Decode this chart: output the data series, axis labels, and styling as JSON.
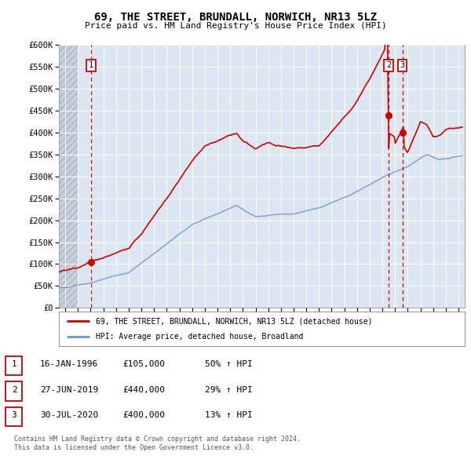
{
  "title": "69, THE STREET, BRUNDALL, NORWICH, NR13 5LZ",
  "subtitle": "Price paid vs. HM Land Registry's House Price Index (HPI)",
  "legend_line1": "69, THE STREET, BRUNDALL, NORWICH, NR13 5LZ (detached house)",
  "legend_line2": "HPI: Average price, detached house, Broadland",
  "footer1": "Contains HM Land Registry data © Crown copyright and database right 2024.",
  "footer2": "This data is licensed under the Open Government Licence v3.0.",
  "transactions": [
    {
      "label": "1",
      "date": "16-JAN-1996",
      "date_num": 1996.04,
      "price": 105000
    },
    {
      "label": "2",
      "date": "27-JUN-2019",
      "date_num": 2019.49,
      "price": 440000
    },
    {
      "label": "3",
      "date": "30-JUL-2020",
      "date_num": 2020.58,
      "price": 400000
    }
  ],
  "table_rows": [
    [
      "1",
      "16-JAN-1996",
      "£105,000",
      "50% ↑ HPI"
    ],
    [
      "2",
      "27-JUN-2019",
      "£440,000",
      "29% ↑ HPI"
    ],
    [
      "3",
      "30-JUL-2020",
      "£400,000",
      "13% ↑ HPI"
    ]
  ],
  "ylim": [
    0,
    600000
  ],
  "yticks": [
    0,
    50000,
    100000,
    150000,
    200000,
    250000,
    300000,
    350000,
    400000,
    450000,
    500000,
    550000,
    600000
  ],
  "ytick_labels": [
    "£0",
    "£50K",
    "£100K",
    "£150K",
    "£200K",
    "£250K",
    "£300K",
    "£350K",
    "£400K",
    "£450K",
    "£500K",
    "£550K",
    "£600K"
  ],
  "xlim_start": 1993.5,
  "xlim_end": 2025.5,
  "bg_color": "#dce6f0",
  "red_color": "#cc0000",
  "blue_color": "#6699cc",
  "hatch_end": 1995.0
}
